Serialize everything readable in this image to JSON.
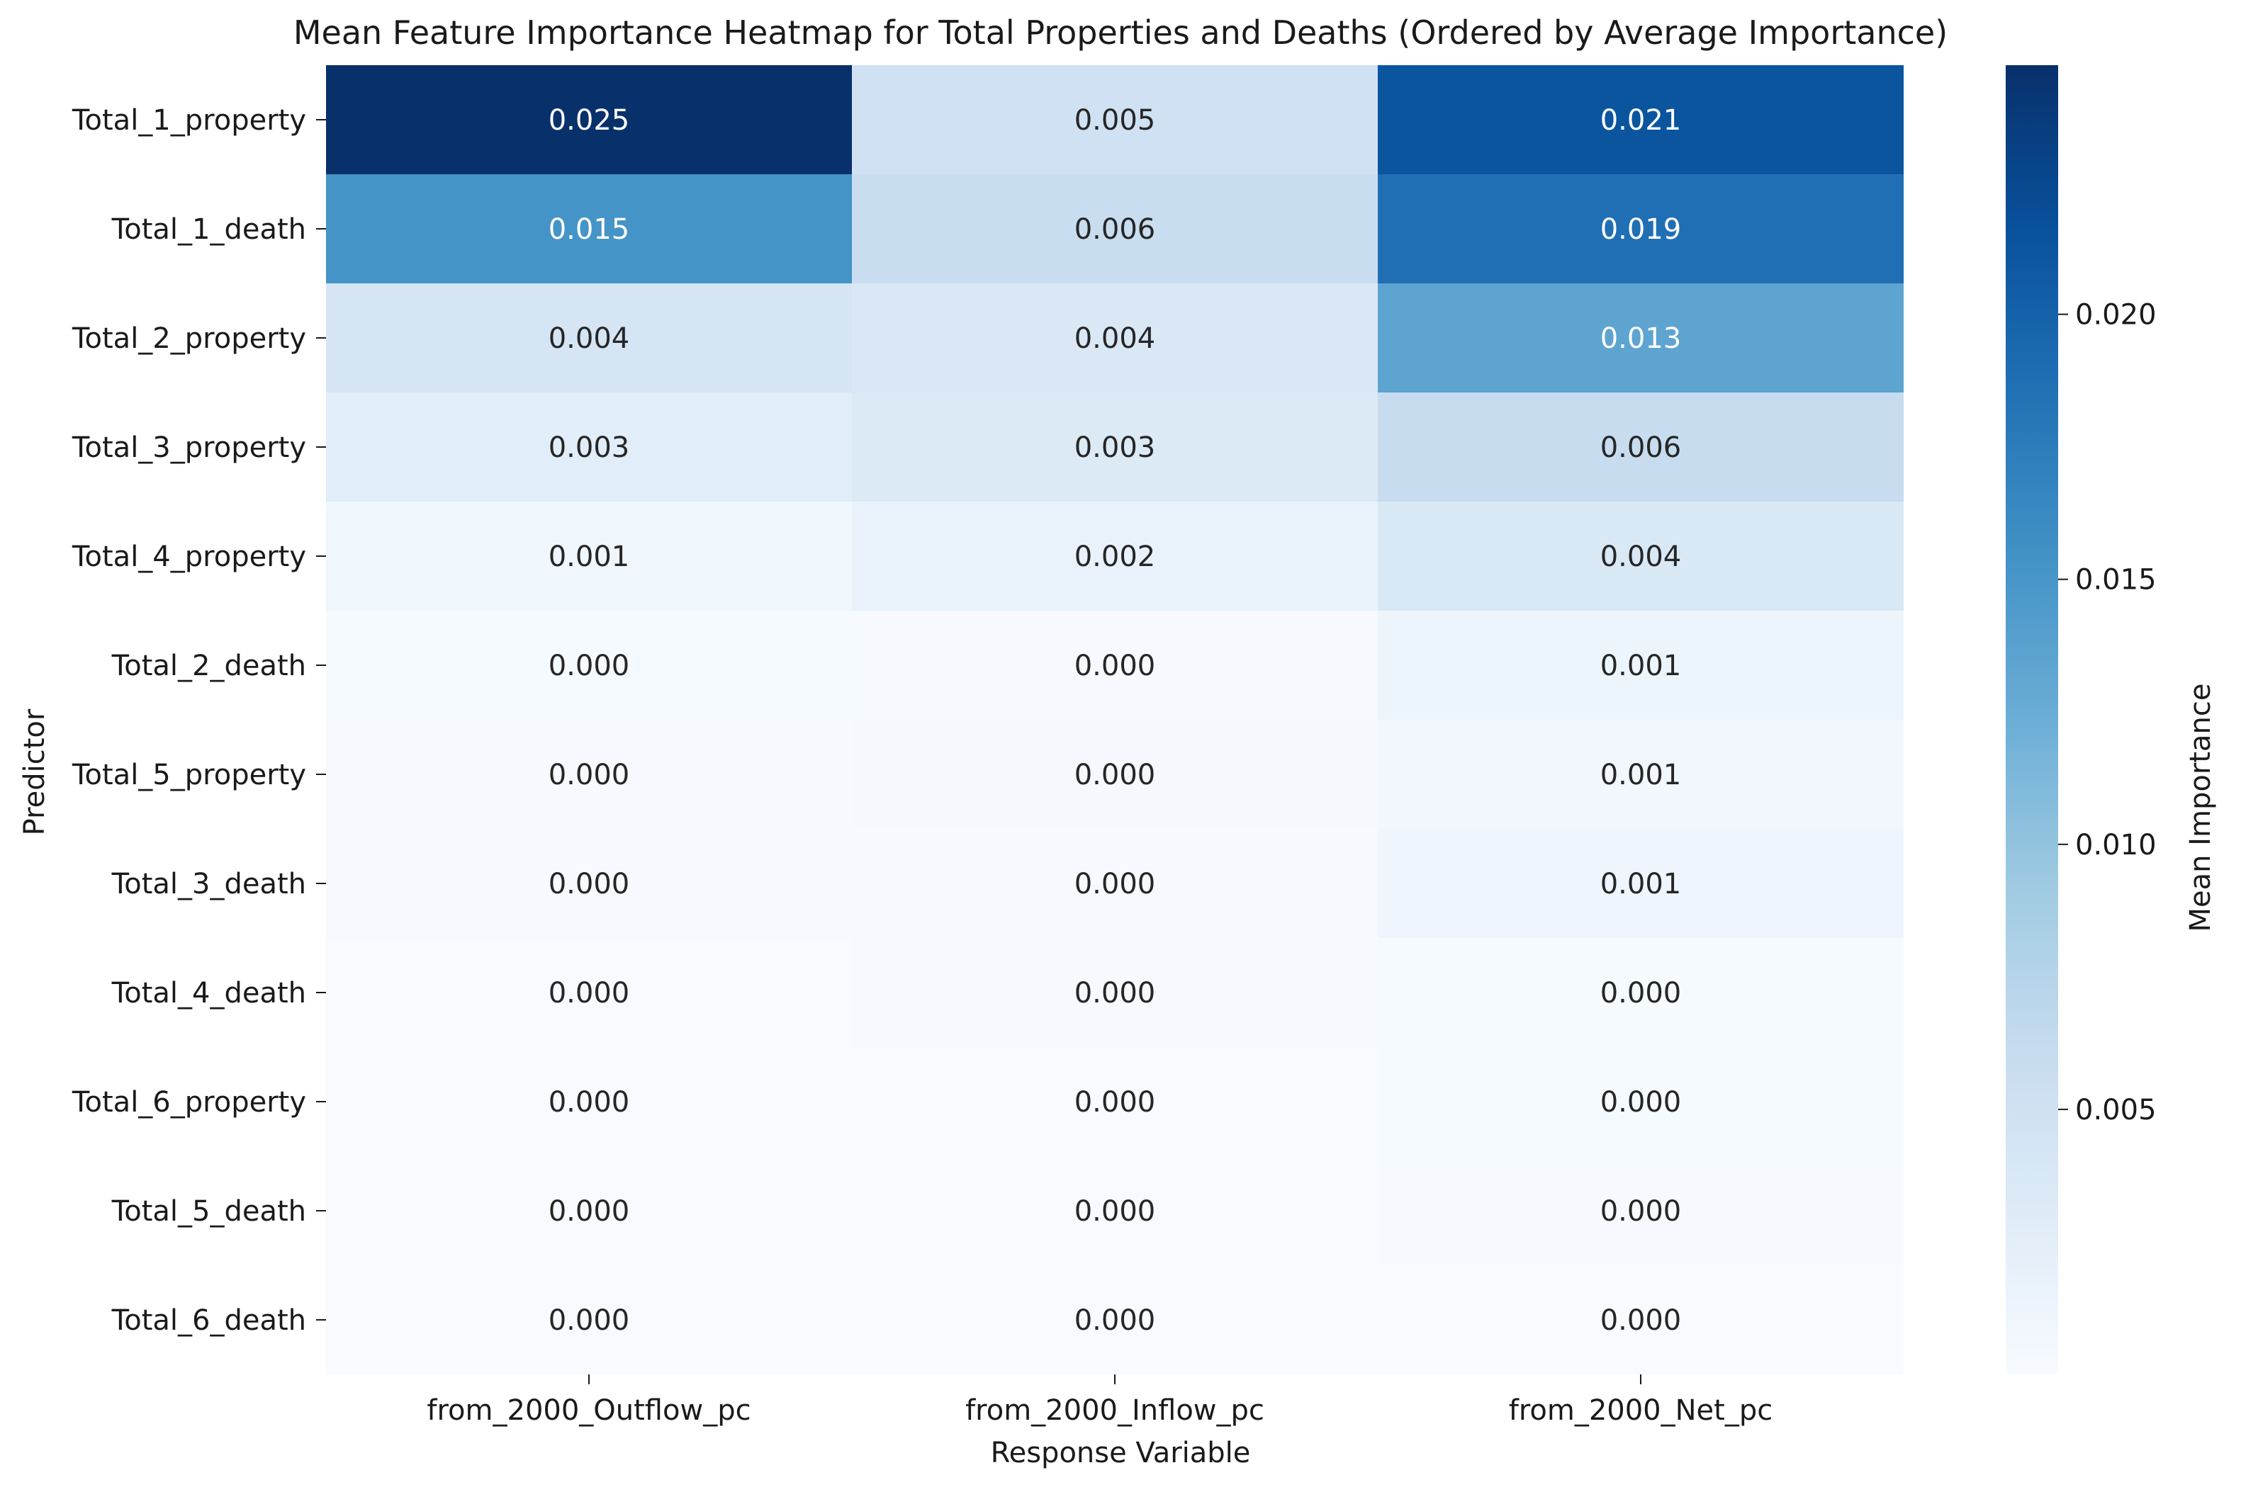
{
  "chart_data": {
    "type": "heatmap",
    "title": "Mean Feature Importance Heatmap for Total Properties and Deaths (Ordered by Average Importance)",
    "xlabel": "Response Variable",
    "ylabel": "Predictor",
    "x_categories": [
      "from_2000_Outflow_pc",
      "from_2000_Inflow_pc",
      "from_2000_Net_pc"
    ],
    "y_categories": [
      "Total_1_property",
      "Total_1_death",
      "Total_2_property",
      "Total_3_property",
      "Total_4_property",
      "Total_2_death",
      "Total_5_property",
      "Total_3_death",
      "Total_4_death",
      "Total_6_property",
      "Total_5_death",
      "Total_6_death"
    ],
    "values": [
      [
        0.0247,
        0.005,
        0.0212
      ],
      [
        0.0152,
        0.0058,
        0.0187
      ],
      [
        0.0042,
        0.0036,
        0.0134
      ],
      [
        0.0027,
        0.0033,
        0.006
      ],
      [
        0.001,
        0.0017,
        0.0037
      ],
      [
        0.0002,
        0.0001,
        0.0012
      ],
      [
        0.0001,
        0.0003,
        0.0007
      ],
      [
        0.0001,
        0.0001,
        0.0011
      ],
      [
        0.0,
        0.0001,
        0.0002
      ],
      [
        0.0,
        0.0,
        0.0002
      ],
      [
        0.0,
        0.0,
        0.0001
      ],
      [
        0.0,
        0.0,
        0.0
      ]
    ],
    "cell_labels": [
      [
        "0.025",
        "0.005",
        "0.021"
      ],
      [
        "0.015",
        "0.006",
        "0.019"
      ],
      [
        "0.004",
        "0.004",
        "0.013"
      ],
      [
        "0.003",
        "0.003",
        "0.006"
      ],
      [
        "0.001",
        "0.002",
        "0.004"
      ],
      [
        "0.000",
        "0.000",
        "0.001"
      ],
      [
        "0.000",
        "0.000",
        "0.001"
      ],
      [
        "0.000",
        "0.000",
        "0.001"
      ],
      [
        "0.000",
        "0.000",
        "0.000"
      ],
      [
        "0.000",
        "0.000",
        "0.000"
      ],
      [
        "0.000",
        "0.000",
        "0.000"
      ],
      [
        "0.000",
        "0.000",
        "0.000"
      ]
    ],
    "colormap": "Blues",
    "colorbar": {
      "label": "Mean Importance",
      "range": [
        0.0,
        0.0247
      ],
      "ticks": [
        0.005,
        0.01,
        0.015,
        0.02
      ],
      "tick_labels": [
        "0.005",
        "0.010",
        "0.015",
        "0.020"
      ]
    },
    "legend": "colorbar-right",
    "grid": false
  }
}
